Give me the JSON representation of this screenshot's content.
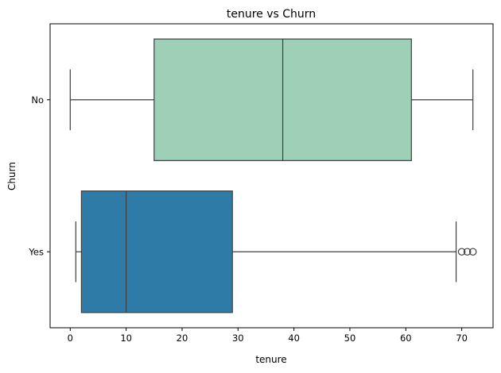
{
  "chart_data": {
    "type": "boxplot",
    "orientation": "horizontal",
    "title": "tenure vs Churn",
    "xlabel": "tenure",
    "ylabel": "Churn",
    "xlim": [
      -3.6,
      75.6
    ],
    "xticks": [
      0,
      10,
      20,
      30,
      40,
      50,
      60,
      70
    ],
    "grid": false,
    "categories": [
      "No",
      "Yes"
    ],
    "boxes": [
      {
        "category": "No",
        "whisker_low": 0,
        "q1": 15,
        "median": 38,
        "q3": 61,
        "whisker_high": 72,
        "outliers": [],
        "color": "#9ecfb7"
      },
      {
        "category": "Yes",
        "whisker_low": 1,
        "q1": 2,
        "median": 10,
        "q3": 29,
        "whisker_high": 69,
        "outliers": [
          70,
          71,
          72
        ],
        "color": "#2f7ba8"
      }
    ]
  }
}
